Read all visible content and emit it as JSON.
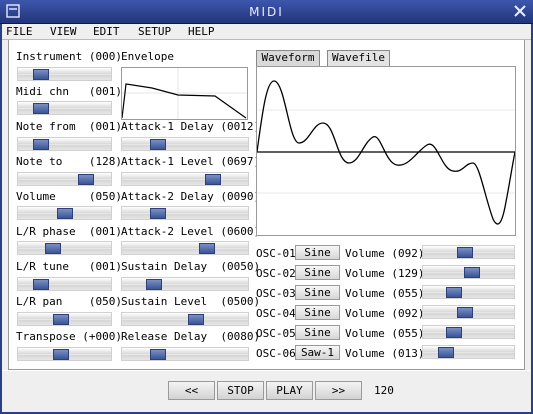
{
  "window": {
    "title": "MIDI"
  },
  "menu": [
    "FILE",
    "VIEW",
    "EDIT",
    "SETUP",
    "HELP"
  ],
  "left_controls": [
    {
      "label": "Instrument (000)",
      "level": 0.2
    },
    {
      "label": "Midi chn   (001)",
      "level": 0.2
    },
    {
      "label": "Note from  (001)",
      "level": 0.2
    },
    {
      "label": "Note to    (128)",
      "level": 0.78
    },
    {
      "label": "Volume     (050)",
      "level": 0.5
    },
    {
      "label": "L/R phase  (001)",
      "level": 0.35
    },
    {
      "label": "L/R tune   (001)",
      "level": 0.2
    },
    {
      "label": "L/R pan    (050)",
      "level": 0.45
    },
    {
      "label": "Transpose (+000)",
      "level": 0.45
    }
  ],
  "envelope": {
    "title": "Envelope",
    "controls": [
      {
        "label": "Attack-1 Delay (0012)",
        "level": 0.25
      },
      {
        "label": "Attack-1 Level (0697)",
        "level": 0.75
      },
      {
        "label": "Attack-2 Delay (0090)",
        "level": 0.25
      },
      {
        "label": "Attack-2 Level (0600)",
        "level": 0.7
      },
      {
        "label": "Sustain Delay  (0050)",
        "level": 0.22
      },
      {
        "label": "Sustain Level  (0500)",
        "level": 0.6
      },
      {
        "label": "Release Delay  (0080)",
        "level": 0.25
      }
    ]
  },
  "tabs": {
    "waveform": "Waveform",
    "wavefile": "Wavefile"
  },
  "oscillators": [
    {
      "label": "OSC-01",
      "wave": "Sine",
      "volume": "Volume (092)",
      "level": 0.45
    },
    {
      "label": "OSC-02",
      "wave": "Sine",
      "volume": "Volume (129)",
      "level": 0.55
    },
    {
      "label": "OSC-03",
      "wave": "Sine",
      "volume": "Volume (055)",
      "level": 0.3
    },
    {
      "label": "OSC-04",
      "wave": "Sine",
      "volume": "Volume (092)",
      "level": 0.45
    },
    {
      "label": "OSC-05",
      "wave": "Sine",
      "volume": "Volume (055)",
      "level": 0.3
    },
    {
      "label": "OSC-06",
      "wave": "Saw-1",
      "volume": "Volume (013)",
      "level": 0.2
    }
  ],
  "transport": {
    "prev": "<<",
    "stop": "STOP",
    "play": "PLAY",
    "next": ">>",
    "tempo": "120"
  },
  "colors": {
    "title_bar": "#2a3f86",
    "slider_knob": "#4a64a6",
    "panel": "#efefef"
  },
  "icons": {
    "window_menu": "window-menu-icon",
    "close": "close-icon"
  }
}
